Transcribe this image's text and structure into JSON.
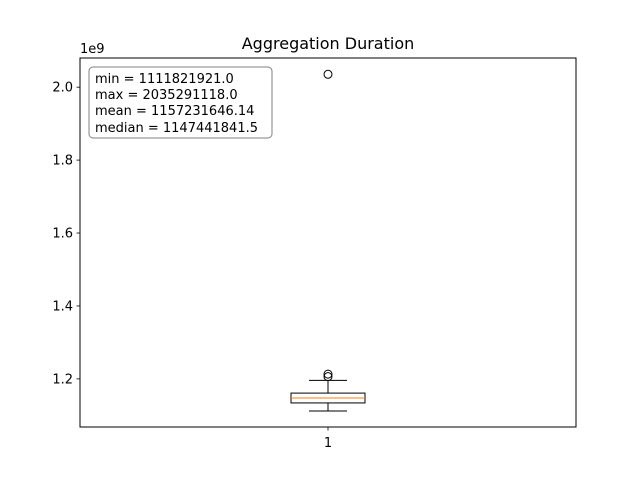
{
  "chart_data": {
    "type": "box",
    "title": "Aggregation Duration",
    "xlabel": "",
    "ylabel": "",
    "y_scale_label": "1e9",
    "categories": [
      "1"
    ],
    "yticks": [
      1.2,
      1.4,
      1.6,
      1.8,
      2.0
    ],
    "ytick_labels": [
      "1.2",
      "1.4",
      "1.6",
      "1.8",
      "2.0"
    ],
    "ylim": [
      1.068,
      2.08
    ],
    "grid": false,
    "box": {
      "category": "1",
      "whisker_low": 1.112,
      "q1": 1.134,
      "median": 1.1474,
      "q3": 1.161,
      "whisker_high": 1.196,
      "outliers": [
        1.206,
        1.213,
        2.0353
      ]
    },
    "stats_box": {
      "position": "top-left",
      "lines": [
        "min = 1111821921.0",
        "max = 2035291118.0",
        "mean = 1157231646.14",
        "median = 1147441841.5"
      ]
    },
    "colors": {
      "box": "#000000",
      "median": "#ff7f0e",
      "background": "#ffffff"
    }
  }
}
